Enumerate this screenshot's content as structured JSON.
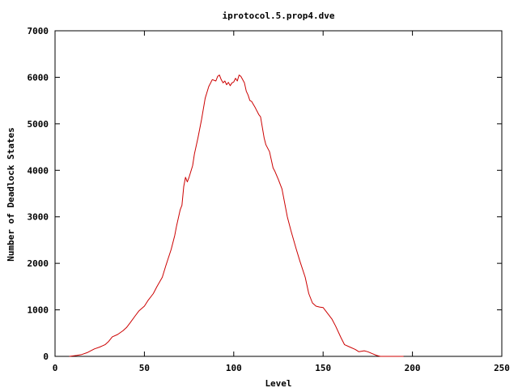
{
  "chart_data": {
    "type": "line",
    "title": "iprotocol.5.prop4.dve",
    "xlabel": "Level",
    "ylabel": "Number of Deadlock States",
    "xlim": [
      0,
      250
    ],
    "ylim": [
      0,
      7000
    ],
    "xticks": [
      0,
      50,
      100,
      150,
      200,
      250
    ],
    "yticks": [
      0,
      1000,
      2000,
      3000,
      4000,
      5000,
      6000,
      7000
    ],
    "grid": false,
    "legend": "none",
    "series": [
      {
        "color": "#cc0000",
        "x": [
          8,
          12,
          15,
          18,
          20,
          22,
          25,
          28,
          30,
          32,
          35,
          38,
          40,
          42,
          45,
          47,
          50,
          52,
          55,
          57,
          60,
          62,
          65,
          67,
          68,
          70,
          71,
          72,
          73,
          74,
          75,
          77,
          78,
          80,
          82,
          84,
          86,
          88,
          90,
          91,
          92,
          93,
          94,
          95,
          96,
          97,
          98,
          99,
          100,
          101,
          102,
          103,
          104,
          105,
          106,
          107,
          108,
          109,
          110,
          112,
          114,
          115,
          117,
          118,
          120,
          122,
          123,
          125,
          127,
          130,
          132,
          135,
          137,
          140,
          142,
          144,
          146,
          148,
          150,
          152,
          155,
          157,
          160,
          162,
          165,
          168,
          170,
          173,
          175,
          178,
          180,
          182,
          185,
          188,
          190,
          193,
          195
        ],
        "y": [
          0,
          20,
          40,
          80,
          120,
          160,
          200,
          250,
          320,
          420,
          470,
          550,
          620,
          720,
          880,
          980,
          1080,
          1200,
          1350,
          1500,
          1700,
          1950,
          2300,
          2600,
          2800,
          3150,
          3250,
          3650,
          3850,
          3750,
          3850,
          4100,
          4350,
          4700,
          5100,
          5550,
          5800,
          5950,
          5920,
          6020,
          6050,
          5950,
          5880,
          5920,
          5840,
          5890,
          5820,
          5880,
          5900,
          5980,
          5920,
          6050,
          6020,
          5950,
          5880,
          5700,
          5620,
          5500,
          5480,
          5350,
          5200,
          5150,
          4700,
          4550,
          4400,
          4050,
          3980,
          3800,
          3600,
          3000,
          2700,
          2300,
          2050,
          1700,
          1350,
          1150,
          1080,
          1060,
          1050,
          950,
          800,
          650,
          400,
          250,
          200,
          150,
          100,
          120,
          100,
          50,
          20,
          0,
          0,
          0,
          0,
          0,
          0
        ]
      }
    ]
  }
}
